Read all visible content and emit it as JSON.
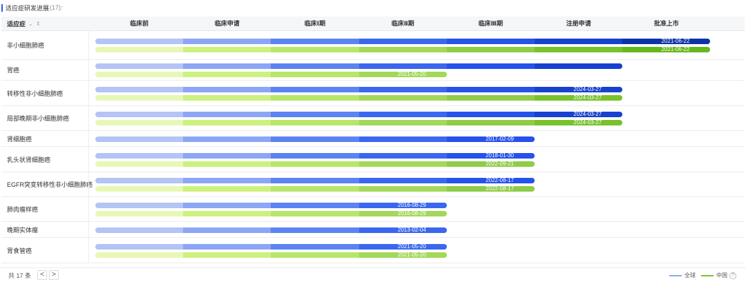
{
  "header": {
    "title": "适应症研发进展",
    "count": "(17):"
  },
  "table": {
    "indication_header": "适应症",
    "sort_icon": "⌄ ⇕",
    "phases": [
      "临床前",
      "临床申请",
      "临床Ⅰ期",
      "临床Ⅱ期",
      "临床Ⅲ期",
      "注册申请",
      "批准上市"
    ]
  },
  "colors": {
    "global": [
      "#b3c4f5",
      "#8ca6f5",
      "#5b83f2",
      "#3a67ef",
      "#2552ea",
      "#1741cf",
      "#0c33a8"
    ],
    "china": [
      "#e7f8b6",
      "#cdf17f",
      "#b7e66a",
      "#a3d85a",
      "#8fcc48",
      "#78c22e",
      "#66b81c"
    ]
  },
  "chart_data": {
    "type": "timeline",
    "phases": [
      "临床前",
      "临床申请",
      "临床Ⅰ期",
      "临床Ⅱ期",
      "临床Ⅲ期",
      "注册申请",
      "批准上市"
    ],
    "rows": [
      {
        "name": "非小细胞肺癌",
        "global": {
          "stage": 7,
          "date": "2021-06-22"
        },
        "china": {
          "stage": 7,
          "date": "2021-06-22"
        }
      },
      {
        "name": "胃癌",
        "global": {
          "stage": 6,
          "date": ""
        },
        "china": {
          "stage": 4,
          "date": "2021-05-20"
        }
      },
      {
        "name": "转移性非小细胞肺癌",
        "global": {
          "stage": 6,
          "date": "2024-03-27"
        },
        "china": {
          "stage": 6,
          "date": "2024-03-27"
        }
      },
      {
        "name": "局部晚期非小细胞肺癌",
        "global": {
          "stage": 6,
          "date": "2024-03-27"
        },
        "china": {
          "stage": 6,
          "date": "2024-03-27"
        }
      },
      {
        "name": "肾细胞癌",
        "global": {
          "stage": 5,
          "date": "2017-02-09"
        },
        "china": null
      },
      {
        "name": "乳头状肾细胞癌",
        "global": {
          "stage": 5,
          "date": "2018-01-30"
        },
        "china": {
          "stage": 5,
          "date": "2022-09-21"
        }
      },
      {
        "name": "EGFR突变转移性非小细胞肺癌",
        "global": {
          "stage": 5,
          "date": "2022-08-17"
        },
        "china": {
          "stage": 5,
          "date": "2022-08-17"
        }
      },
      {
        "name": "肺肉瘤样癌",
        "global": {
          "stage": 4,
          "date": "2016-08-29"
        },
        "china": {
          "stage": 4,
          "date": "2016-08-29"
        }
      },
      {
        "name": "晚期实体瘤",
        "global": {
          "stage": 4,
          "date": "2013-02-04"
        },
        "china": null
      },
      {
        "name": "胃食管癌",
        "global": {
          "stage": 4,
          "date": "2021-05-20"
        },
        "china": {
          "stage": 4,
          "date": "2021-05-20"
        }
      }
    ]
  },
  "footer": {
    "total": "共 17 条",
    "prev": "<",
    "next": ">",
    "legend_global": "全球",
    "legend_china": "中国",
    "help": "?"
  }
}
